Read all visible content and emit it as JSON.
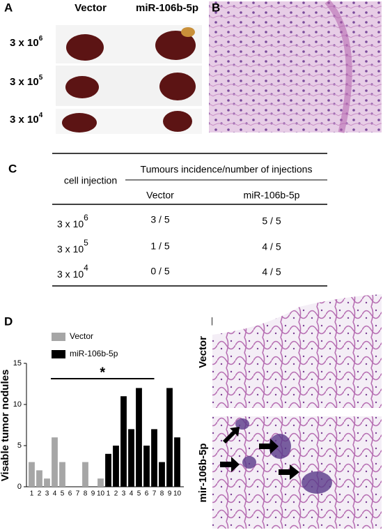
{
  "panel_a": {
    "label": "A",
    "columns": [
      "Vector",
      "miR-106b-5p"
    ],
    "rows": [
      {
        "base": "3 x 10",
        "exponent": "6"
      },
      {
        "base": "3 x 10",
        "exponent": "5"
      },
      {
        "base": "3 x 10",
        "exponent": "4"
      }
    ]
  },
  "panel_b": {
    "label": "B"
  },
  "panel_c": {
    "label": "C",
    "table": {
      "row_header": "cell injection",
      "group_header": "Tumours incidence/number of injections",
      "columns": [
        "Vector",
        "miR-106b-5p"
      ],
      "rows": [
        {
          "base": "3 x 10",
          "exponent": "6",
          "cells": [
            "3 / 5",
            "5 / 5"
          ]
        },
        {
          "base": "3 x 10",
          "exponent": "5",
          "cells": [
            "1 / 5",
            "4 / 5"
          ]
        },
        {
          "base": "3 x 10",
          "exponent": "4",
          "cells": [
            "0 / 5",
            "4 / 5"
          ]
        }
      ]
    }
  },
  "chart_data": {
    "type": "bar",
    "panel_label": "D",
    "y_label": "Visable tumor nodules",
    "categories": [
      "1",
      "2",
      "3",
      "4",
      "5",
      "6",
      "7",
      "8",
      "9",
      "10",
      "1",
      "2",
      "3",
      "4",
      "5",
      "6",
      "7",
      "8",
      "9",
      "10"
    ],
    "series": [
      {
        "name": "Vector",
        "color": "#a6a6a6",
        "values": [
          3,
          2,
          1,
          6,
          3,
          0,
          0,
          3,
          0,
          1,
          null,
          null,
          null,
          null,
          null,
          null,
          null,
          null,
          null,
          null
        ]
      },
      {
        "name": "miR-106b-5p",
        "color": "#000000",
        "values": [
          null,
          null,
          null,
          null,
          null,
          null,
          null,
          null,
          null,
          null,
          4,
          5,
          11,
          7,
          12,
          5,
          7,
          3,
          12,
          6
        ]
      }
    ],
    "ylim": [
      0,
      15
    ],
    "yticks": [
      0,
      5,
      10,
      15
    ],
    "annotation": "*",
    "legend": "top"
  },
  "panel_e": {
    "label": "E",
    "rows": [
      "Vector",
      "mir-106b-5p"
    ]
  }
}
